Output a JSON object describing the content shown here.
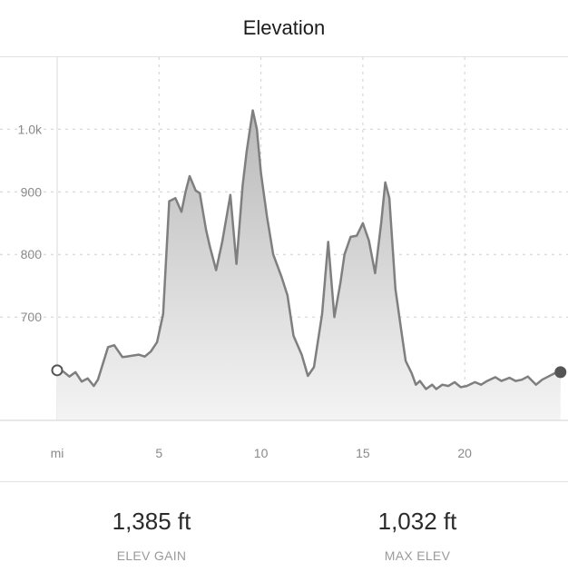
{
  "header": {
    "title": "Elevation"
  },
  "stats": [
    {
      "value": "1,385 ft",
      "label": "ELEV GAIN"
    },
    {
      "value": "1,032 ft",
      "label": "MAX ELEV"
    }
  ],
  "colors": {
    "line": "#7f7f7f",
    "fill_top": "#b9b9b9",
    "fill_bottom": "#f4f4f4",
    "grid": "#cfcfcf",
    "axis_text": "#8a8a8a"
  },
  "chart_data": {
    "type": "area",
    "title": "",
    "xlabel": "",
    "ylabel": "",
    "x_unit_label": "mi",
    "xlim": [
      0,
      24.8
    ],
    "ylim": [
      535,
      1115
    ],
    "x_ticks": [
      5,
      10,
      15,
      20
    ],
    "x_tick_labels": [
      "5",
      "10",
      "15",
      "20"
    ],
    "y_ticks": [
      700,
      800,
      900,
      1000
    ],
    "y_tick_labels": [
      "700",
      "800",
      "900",
      "1.0k"
    ],
    "grid": true,
    "series": [
      {
        "x": [
          0,
          0.3,
          0.6,
          0.9,
          1.2,
          1.5,
          1.8,
          2.0,
          2.5,
          2.8,
          3.2,
          3.4,
          3.6,
          4.0,
          4.3,
          4.6,
          4.9,
          5.2,
          5.5,
          5.8,
          6.1,
          6.3,
          6.5,
          6.8,
          7.0,
          7.3,
          7.5,
          7.8,
          8.1,
          8.5,
          8.8,
          9.1,
          9.3,
          9.6,
          9.8,
          10.0,
          10.3,
          10.6,
          11.0,
          11.3,
          11.6,
          12.0,
          12.3,
          12.6,
          13.0,
          13.3,
          13.6,
          13.9,
          14.1,
          14.4,
          14.7,
          15.0,
          15.3,
          15.6,
          15.9,
          16.1,
          16.3,
          16.6,
          16.9,
          17.1,
          17.4,
          17.6,
          17.8,
          18.1,
          18.4,
          18.6,
          18.9,
          19.2,
          19.5,
          19.8,
          20.1,
          20.5,
          20.8,
          21.1,
          21.5,
          21.8,
          22.2,
          22.5,
          22.8,
          23.1,
          23.5,
          23.8,
          24.1,
          24.4,
          24.7
        ],
        "y": [
          615,
          613,
          605,
          612,
          597,
          602,
          590,
          600,
          652,
          655,
          636,
          637,
          638,
          640,
          637,
          645,
          660,
          705,
          885,
          890,
          868,
          900,
          925,
          902,
          898,
          840,
          812,
          775,
          820,
          895,
          785,
          910,
          965,
          1030,
          1000,
          930,
          860,
          800,
          765,
          735,
          670,
          640,
          606,
          620,
          705,
          820,
          700,
          755,
          800,
          828,
          830,
          850,
          822,
          770,
          850,
          915,
          890,
          745,
          675,
          630,
          610,
          592,
          598,
          585,
          592,
          585,
          592,
          590,
          596,
          588,
          590,
          596,
          592,
          598,
          604,
          598,
          603,
          598,
          600,
          605,
          592,
          600,
          605,
          610,
          612
        ]
      }
    ]
  }
}
